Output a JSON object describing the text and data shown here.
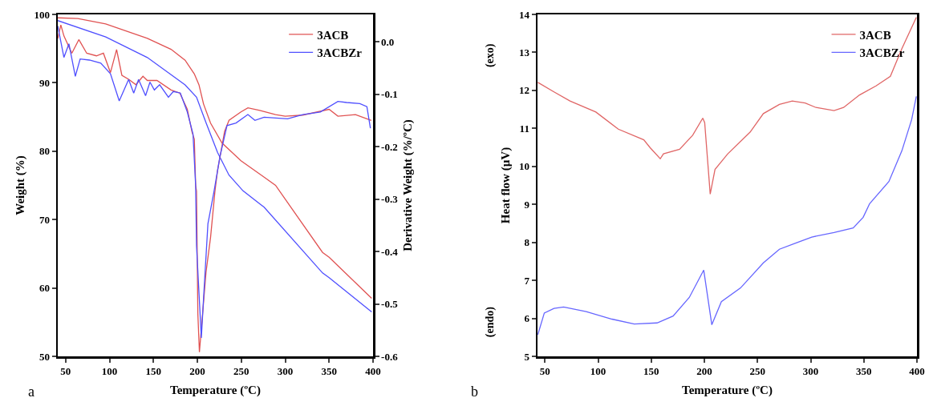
{
  "chart_data": [
    {
      "type": "line",
      "xlabel": "Temperature (ºC)",
      "ylabel": "Weight (%)",
      "y2label": "Derivative Weight (%/ºC)",
      "annotations": [
        "a"
      ],
      "xlim": [
        41,
        400
      ],
      "xticks": [
        50,
        100,
        150,
        200,
        250,
        300,
        350,
        400
      ],
      "ylim": [
        50,
        100
      ],
      "yticks": [
        50,
        60,
        70,
        80,
        90,
        100
      ],
      "y2lim": [
        -0.6,
        0.052
      ],
      "y2ticks": [
        {
          "value": 0,
          "label": "0.0"
        },
        -0.1,
        -0.2,
        -0.3,
        -0.4,
        -0.5,
        -0.6
      ],
      "grid": false,
      "legend": "top right",
      "series": [
        {
          "name": "3ACB",
          "color": "#e05252",
          "x": [
            41,
            63.8,
            95.6,
            143,
            170,
            186,
            196.5,
            201.8,
            207,
            215,
            228,
            249.6,
            276,
            289,
            342.5,
            350,
            398.4
          ],
          "values": [
            99.5,
            99.4,
            98.6,
            96.5,
            94.9,
            93.3,
            91.3,
            89.7,
            86.9,
            84.1,
            81.2,
            78.6,
            76.2,
            75,
            65.2,
            64.5,
            58.5
          ]
        },
        {
          "name": "3ACBZr",
          "color": "#4f4fff",
          "x": [
            41,
            95.6,
            143,
            186,
            199,
            210,
            223,
            236,
            252,
            276,
            342.5,
            350,
            398.4
          ],
          "values": [
            99.1,
            96.7,
            93.7,
            89.7,
            87.9,
            84.1,
            79.8,
            76.5,
            74.2,
            71.8,
            62.2,
            61.5,
            56.5
          ]
        },
        {
          "color": "#e05252",
          "axis": "y2",
          "x": [
            41,
            44.5,
            48,
            57,
            65,
            74,
            85,
            93,
            101,
            108,
            114,
            122,
            130,
            138,
            143,
            154,
            170,
            180,
            188.5,
            194,
            196.5,
            198,
            199,
            200.5,
            202.3,
            209.8,
            215,
            220,
            223,
            231,
            236,
            249.6,
            257.5,
            271,
            289,
            300,
            320,
            350,
            360,
            380,
            398
          ],
          "values": [
            0.006,
            0.032,
            0.011,
            -0.022,
            0.004,
            -0.022,
            -0.027,
            -0.022,
            -0.059,
            -0.015,
            -0.064,
            -0.072,
            -0.082,
            -0.066,
            -0.074,
            -0.074,
            -0.092,
            -0.098,
            -0.129,
            -0.173,
            -0.186,
            -0.274,
            -0.285,
            -0.518,
            -0.592,
            -0.44,
            -0.373,
            -0.285,
            -0.245,
            -0.171,
            -0.15,
            -0.134,
            -0.126,
            -0.131,
            -0.139,
            -0.142,
            -0.14,
            -0.129,
            -0.142,
            -0.139,
            -0.15
          ]
        },
        {
          "color": "#4f4fff",
          "axis": "y2",
          "x": [
            41,
            48,
            53.7,
            61,
            66.5,
            77,
            90,
            101,
            111,
            121.7,
            127.5,
            133,
            141,
            146,
            151,
            157,
            167,
            172.6,
            180.6,
            188.5,
            195,
            198,
            199,
            204.5,
            207,
            212,
            219,
            225.7,
            233.7,
            244,
            257.5,
            265.5,
            276,
            302.7,
            320,
            340,
            360,
            370,
            385,
            393,
            397
          ],
          "values": [
            0.03,
            -0.03,
            -0.004,
            -0.066,
            -0.033,
            -0.035,
            -0.041,
            -0.061,
            -0.113,
            -0.072,
            -0.098,
            -0.072,
            -0.103,
            -0.077,
            -0.092,
            -0.082,
            -0.106,
            -0.095,
            -0.098,
            -0.134,
            -0.176,
            -0.274,
            -0.389,
            -0.565,
            -0.49,
            -0.347,
            -0.285,
            -0.219,
            -0.16,
            -0.155,
            -0.139,
            -0.15,
            -0.144,
            -0.147,
            -0.139,
            -0.134,
            -0.114,
            -0.116,
            -0.118,
            -0.124,
            -0.165
          ]
        }
      ]
    },
    {
      "type": "line",
      "xlabel": "Temperature (ºC)",
      "ylabel": "Heat flow (µV)",
      "annotations": [
        "(exo)",
        "(endo)",
        "b"
      ],
      "xlim": [
        43,
        400
      ],
      "xticks": [
        50,
        100,
        150,
        200,
        250,
        300,
        350,
        400
      ],
      "ylim": [
        5,
        14
      ],
      "yticks": [
        5,
        6,
        7,
        8,
        9,
        10,
        11,
        12,
        13,
        14
      ],
      "grid": false,
      "legend": "top right",
      "series": [
        {
          "name": "3ACB",
          "color": "#e06666",
          "x": [
            43.3,
            58.5,
            73.6,
            97.9,
            119,
            143,
            149,
            158.5,
            161.5,
            176.7,
            189,
            198.5,
            200.3,
            205.5,
            210,
            222,
            243,
            255.5,
            270.6,
            282.7,
            294.8,
            305,
            322,
            331,
            346,
            361.5,
            375,
            385.8,
            399.4
          ],
          "values": [
            12.21,
            11.96,
            11.72,
            11.43,
            10.98,
            10.7,
            10.49,
            10.2,
            10.33,
            10.45,
            10.82,
            11.27,
            11.15,
            9.27,
            9.92,
            10.33,
            10.9,
            11.39,
            11.63,
            11.72,
            11.67,
            11.55,
            11.47,
            11.55,
            11.88,
            12.12,
            12.37,
            13.1,
            13.92
          ]
        },
        {
          "name": "3ACBZr",
          "color": "#6666ff",
          "x": [
            43.3,
            49.4,
            58.5,
            67.6,
            88.8,
            113,
            134,
            155.5,
            170.6,
            185.8,
            199.4,
            207,
            216,
            234,
            255.5,
            270.6,
            285.8,
            301,
            322,
            340,
            349.4,
            355.5,
            373.6,
            385.8,
            395,
            399.4
          ],
          "values": [
            5.57,
            6.14,
            6.26,
            6.3,
            6.18,
            5.98,
            5.85,
            5.88,
            6.06,
            6.55,
            7.27,
            5.83,
            6.44,
            6.8,
            7.46,
            7.82,
            7.98,
            8.14,
            8.26,
            8.38,
            8.66,
            9.02,
            9.6,
            10.41,
            11.23,
            11.84
          ]
        }
      ]
    }
  ]
}
